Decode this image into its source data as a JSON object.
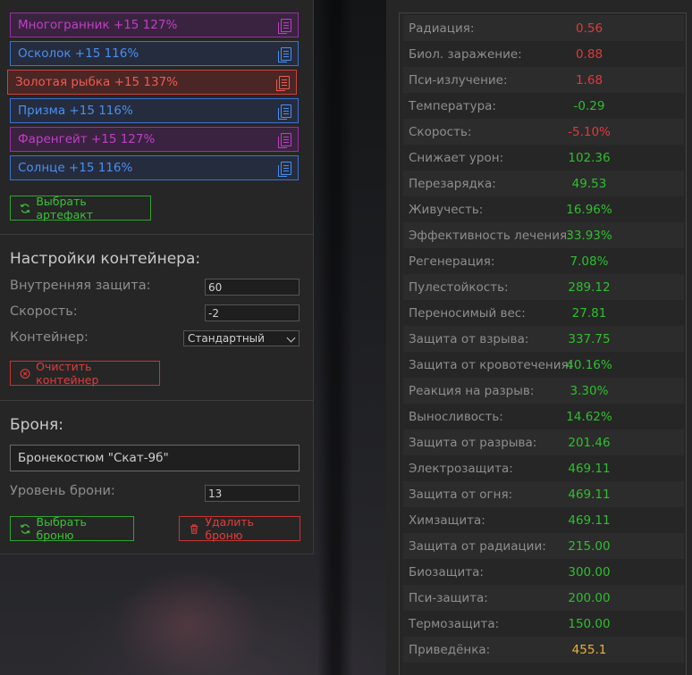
{
  "artifacts": [
    {
      "name": "Многогранник +15 127%",
      "style": "purple"
    },
    {
      "name": "Осколок +15 116%",
      "style": "blue"
    },
    {
      "name": "Золотая рыбка +15 137%",
      "style": "red"
    },
    {
      "name": "Призма +15 116%",
      "style": "blue"
    },
    {
      "name": "Фаренгейт +15 127%",
      "style": "purple"
    },
    {
      "name": "Солнце +15 116%",
      "style": "blue"
    }
  ],
  "choose_artifact_label": "Выбрать артефакт",
  "container": {
    "title": "Настройки контейнера:",
    "inner_protection_label": "Внутренняя защита:",
    "inner_protection_value": "60",
    "speed_label": "Скорость:",
    "speed_value": "-2",
    "container_label": "Контейнер:",
    "container_value": "Стандартный",
    "clear_label": "Очистить контейнер"
  },
  "armor": {
    "title": "Броня:",
    "name": "Бронекостюм \"Скат-9б\"",
    "level_label": "Уровень брони:",
    "level_value": "13",
    "choose_label": "Выбрать броню",
    "delete_label": "Удалить броню"
  },
  "stats": [
    {
      "name": "Радиация:",
      "value": "0.56",
      "color": "#e03a3a"
    },
    {
      "name": "Биол. заражение:",
      "value": "0.88",
      "color": "#e03a3a"
    },
    {
      "name": "Пси-излучение:",
      "value": "1.68",
      "color": "#e03a3a"
    },
    {
      "name": "Температура:",
      "value": "-0.29",
      "color": "#2fbf2f"
    },
    {
      "name": "Скорость:",
      "value": "-5.10%",
      "color": "#e03a3a"
    },
    {
      "name": "Снижает урон:",
      "value": "102.36",
      "color": "#2fbf2f"
    },
    {
      "name": "Перезарядка:",
      "value": "49.53",
      "color": "#2fbf2f"
    },
    {
      "name": "Живучесть:",
      "value": "16.96%",
      "color": "#2fbf2f"
    },
    {
      "name": "Эффективность лечения:",
      "value": "33.93%",
      "color": "#2fbf2f"
    },
    {
      "name": "Регенерация:",
      "value": "7.08%",
      "color": "#2fbf2f"
    },
    {
      "name": "Пулестойкость:",
      "value": "289.12",
      "color": "#2fbf2f"
    },
    {
      "name": "Переносимый вес:",
      "value": "27.81",
      "color": "#2fbf2f"
    },
    {
      "name": "Защита от взрыва:",
      "value": "337.75",
      "color": "#2fbf2f"
    },
    {
      "name": "Защита от кровотечения:",
      "value": "40.16%",
      "color": "#2fbf2f"
    },
    {
      "name": "Реакция на разрыв:",
      "value": "3.30%",
      "color": "#2fbf2f"
    },
    {
      "name": "Выносливость:",
      "value": "14.62%",
      "color": "#2fbf2f"
    },
    {
      "name": "Защита от разрыва:",
      "value": "201.46",
      "color": "#2fbf2f"
    },
    {
      "name": "Электрозащита:",
      "value": "469.11",
      "color": "#2fbf2f"
    },
    {
      "name": "Защита от огня:",
      "value": "469.11",
      "color": "#2fbf2f"
    },
    {
      "name": "Химзащита:",
      "value": "469.11",
      "color": "#2fbf2f"
    },
    {
      "name": "Защита от радиации:",
      "value": "215.00",
      "color": "#2fbf2f"
    },
    {
      "name": "Биозащита:",
      "value": "300.00",
      "color": "#2fbf2f"
    },
    {
      "name": "Пси-защита:",
      "value": "200.00",
      "color": "#2fbf2f"
    },
    {
      "name": "Термозащита:",
      "value": "150.00",
      "color": "#2fbf2f"
    },
    {
      "name": "Приведёнка:",
      "value": "455.1",
      "color": "#e6b23a"
    }
  ]
}
